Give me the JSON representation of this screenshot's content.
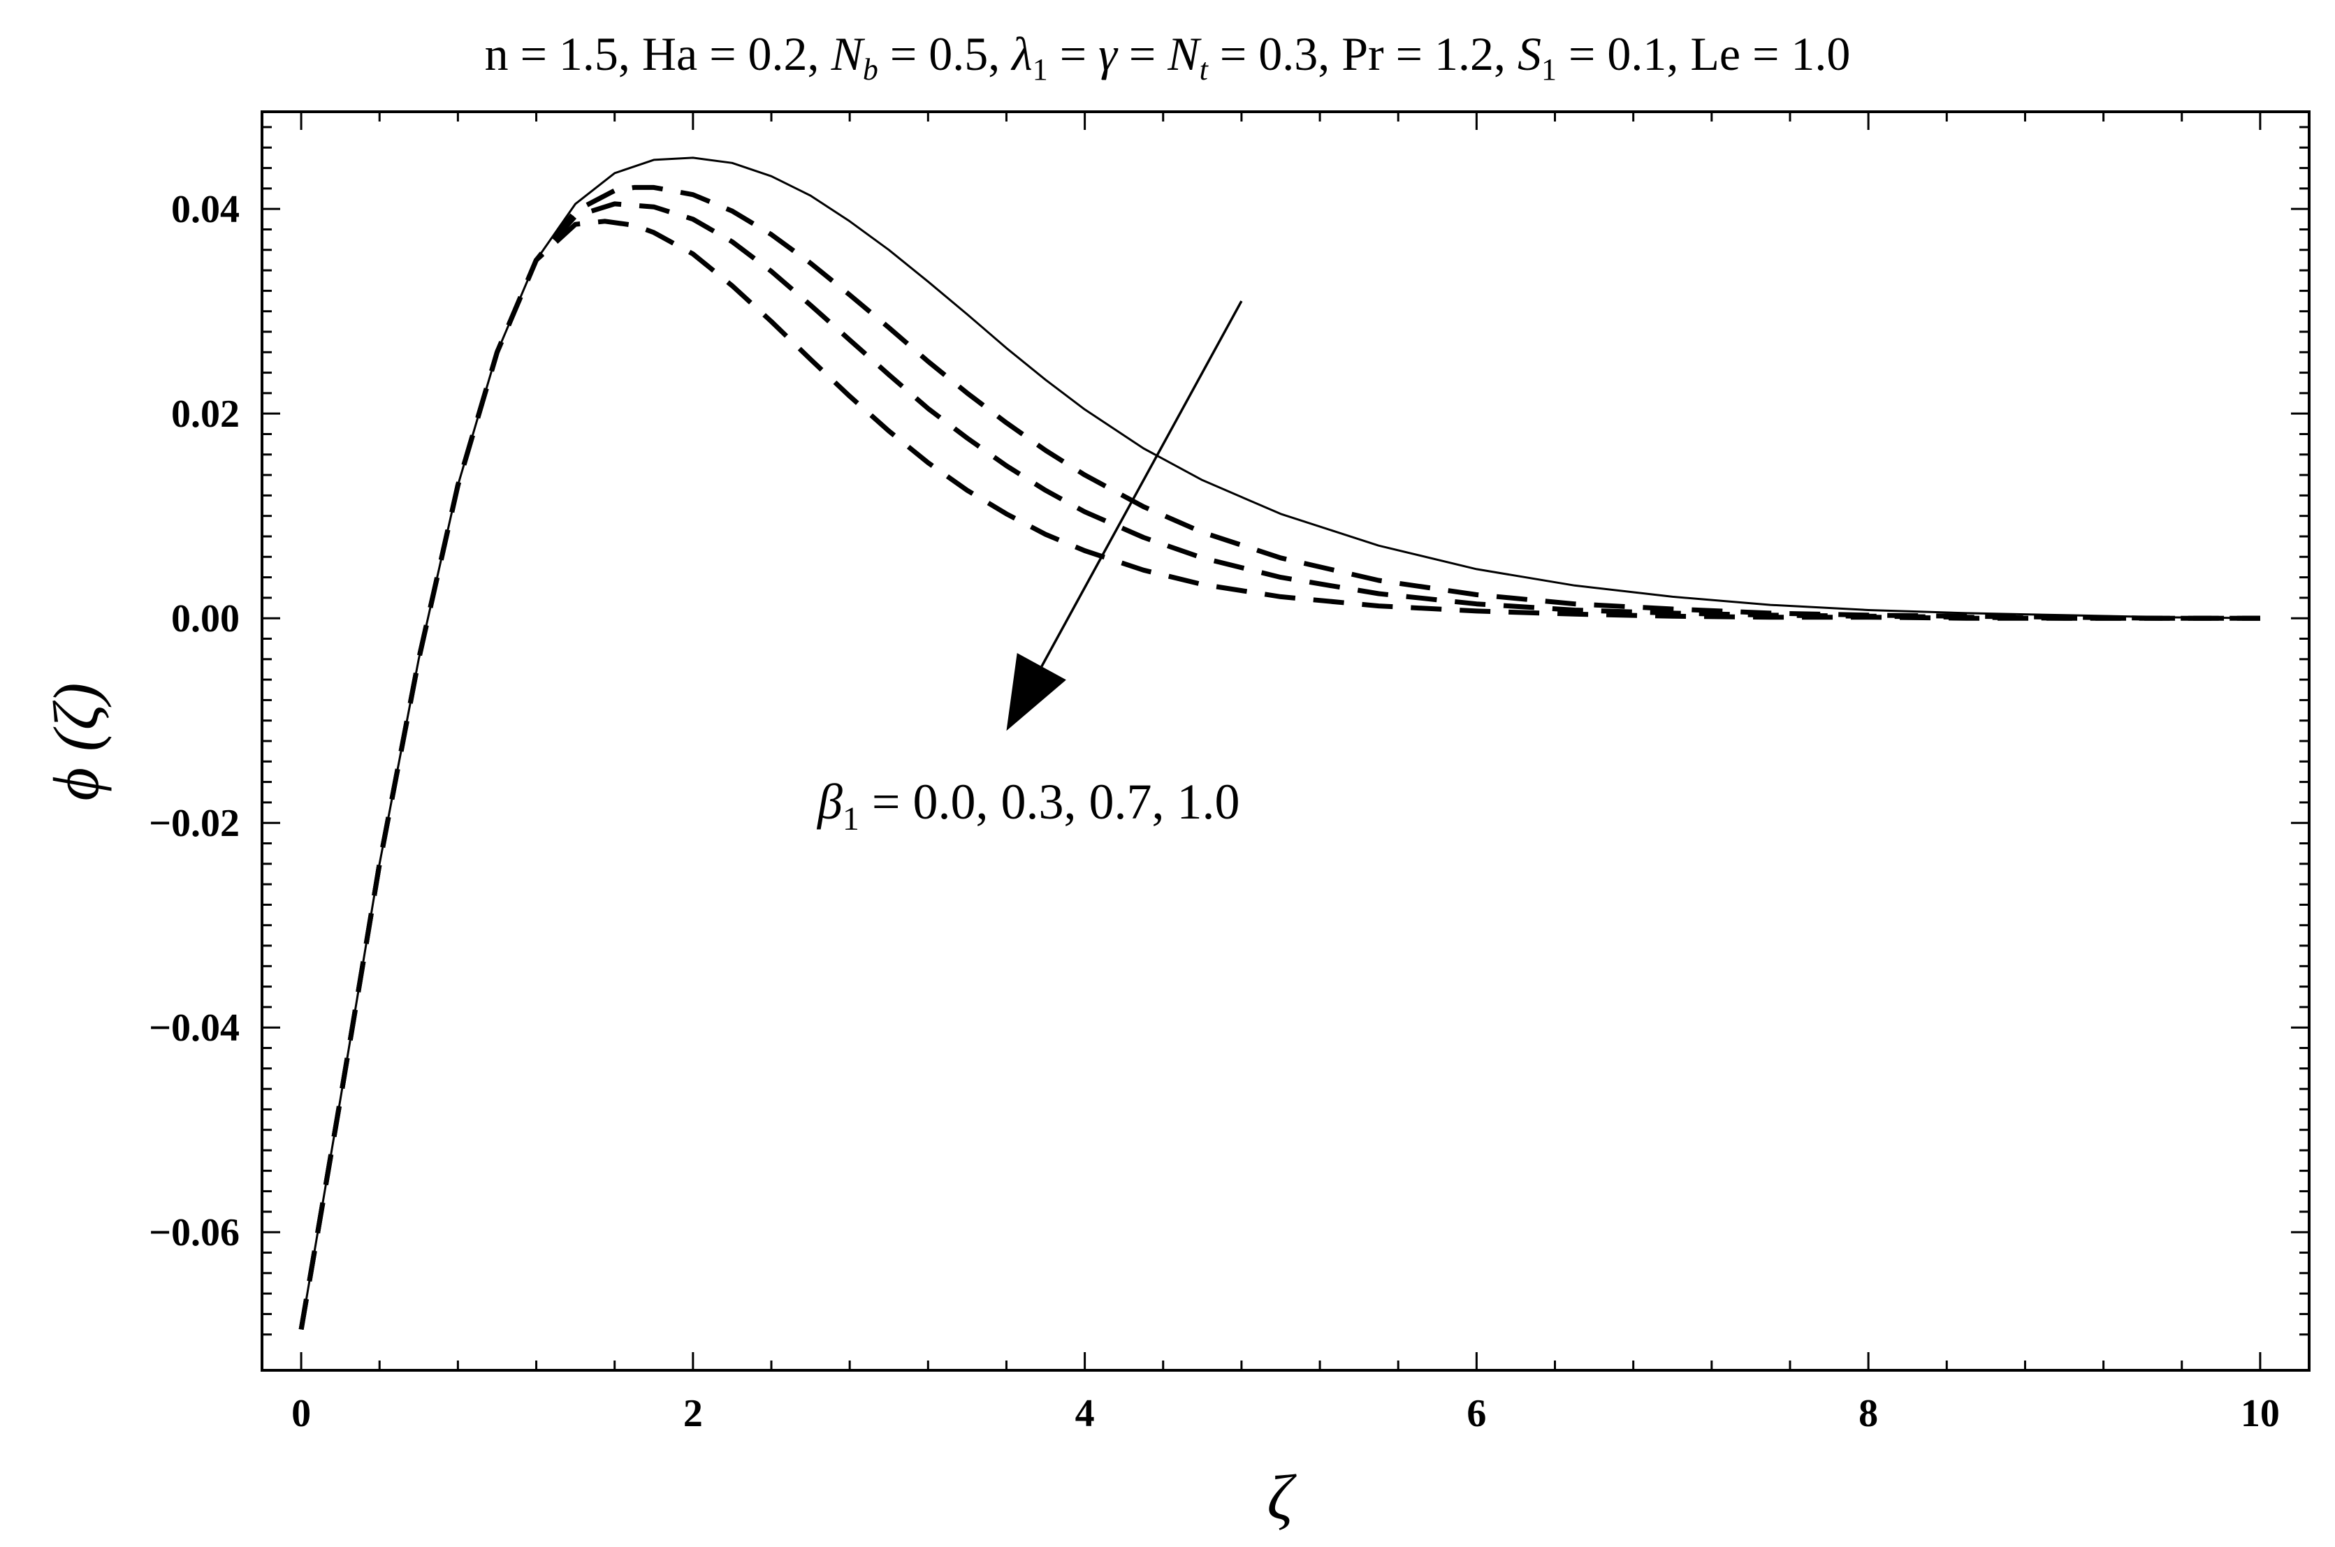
{
  "chart_data": {
    "type": "line",
    "title": "n = 1.5, Ha = 0.2, N_b = 0.5, λ_1 = γ = N_t = 0.3, Pr = 1.2, S_1 = 0.1, Le = 1.0",
    "title_parts": {
      "p1": "n = 1.5, Ha = 0.2, ",
      "p2": "N",
      "p2_sub": "b",
      "p3": " = 0.5, ",
      "p4": "λ",
      "p4_sub": "1",
      "p5": " = ",
      "p6": "γ",
      "p7": " = ",
      "p8": "N",
      "p8_sub": "t",
      "p9": " = 0.3, Pr = 1.2, ",
      "p10": "S",
      "p10_sub": "1",
      "p11": " = 0.1, Le = 1.0"
    },
    "xlabel": "ζ",
    "ylabel": "ϕ (ζ)",
    "xlim": [
      -0.2,
      10.25
    ],
    "ylim": [
      -0.0735,
      0.0495
    ],
    "xticks": [
      0,
      2,
      4,
      6,
      8,
      10
    ],
    "xtick_labels": [
      "0",
      "2",
      "4",
      "6",
      "8",
      "10"
    ],
    "yticks": [
      -0.06,
      -0.04,
      -0.02,
      0.0,
      0.02,
      0.04
    ],
    "ytick_labels": [
      "−0.06",
      "−0.04",
      "−0.02",
      "0.00",
      "0.02",
      "0.04"
    ],
    "grid": false,
    "line_color": "#000000",
    "annotation": {
      "symbol": "β",
      "sub": "1",
      "text": " = 0.0, 0.3, 0.7, 1.0",
      "arrow_from": [
        4.8,
        0.031
      ],
      "arrow_to": [
        3.6,
        -0.011
      ]
    },
    "series": [
      {
        "style": "solid",
        "x": [
          0,
          0.2,
          0.4,
          0.6,
          0.8,
          1.0,
          1.2,
          1.4,
          1.6,
          1.8,
          2.0,
          2.2,
          2.4,
          2.6,
          2.8,
          3.0,
          3.2,
          3.4,
          3.6,
          3.8,
          4.0,
          4.3,
          4.6,
          5.0,
          5.5,
          6.0,
          6.5,
          7.0,
          7.5,
          8.0,
          8.5,
          9.0,
          9.5,
          10.0
        ],
        "y": [
          -0.0695,
          -0.047,
          -0.024,
          -0.004,
          0.013,
          0.026,
          0.035,
          0.0405,
          0.0435,
          0.0448,
          0.045,
          0.0445,
          0.0432,
          0.0413,
          0.0388,
          0.036,
          0.0329,
          0.0297,
          0.0264,
          0.0233,
          0.0204,
          0.0166,
          0.0135,
          0.0102,
          0.0071,
          0.0048,
          0.0032,
          0.0021,
          0.0013,
          0.0008,
          0.0005,
          0.0003,
          0.0001,
          0.0
        ]
      },
      {
        "style": "dashed",
        "x": [
          0,
          0.2,
          0.4,
          0.6,
          0.8,
          1.0,
          1.2,
          1.4,
          1.6,
          1.7,
          1.8,
          2.0,
          2.2,
          2.4,
          2.6,
          2.8,
          3.0,
          3.2,
          3.4,
          3.6,
          3.8,
          4.0,
          4.3,
          4.6,
          5.0,
          5.5,
          6.0,
          6.5,
          7.0,
          7.5,
          8.0,
          8.5,
          9.0,
          9.5,
          10.0
        ],
        "y": [
          -0.0695,
          -0.047,
          -0.024,
          -0.004,
          0.013,
          0.026,
          0.035,
          0.0398,
          0.0418,
          0.0421,
          0.0421,
          0.0414,
          0.0398,
          0.0375,
          0.0347,
          0.0316,
          0.0284,
          0.0251,
          0.022,
          0.0191,
          0.0164,
          0.014,
          0.0109,
          0.0084,
          0.0059,
          0.0037,
          0.0023,
          0.0014,
          0.0009,
          0.0005,
          0.0003,
          0.0002,
          0.0001,
          0.0,
          0.0
        ]
      },
      {
        "style": "dashed",
        "x": [
          0,
          0.2,
          0.4,
          0.6,
          0.8,
          1.0,
          1.2,
          1.4,
          1.6,
          1.8,
          2.0,
          2.2,
          2.4,
          2.6,
          2.8,
          3.0,
          3.2,
          3.4,
          3.6,
          3.8,
          4.0,
          4.3,
          4.6,
          5.0,
          5.5,
          6.0,
          6.5,
          7.0,
          7.5,
          8.0,
          8.5,
          9.0,
          9.5,
          10.0
        ],
        "y": [
          -0.0695,
          -0.047,
          -0.024,
          -0.004,
          0.013,
          0.026,
          0.035,
          0.0393,
          0.0405,
          0.0402,
          0.039,
          0.0368,
          0.0339,
          0.0306,
          0.0272,
          0.0238,
          0.0205,
          0.0176,
          0.0149,
          0.0125,
          0.0104,
          0.0079,
          0.0059,
          0.004,
          0.0024,
          0.0014,
          0.0008,
          0.0005,
          0.0003,
          0.0002,
          0.0001,
          0.0,
          0.0,
          0.0
        ]
      },
      {
        "style": "dashed",
        "x": [
          0,
          0.2,
          0.4,
          0.6,
          0.8,
          1.0,
          1.2,
          1.4,
          1.55,
          1.7,
          1.8,
          2.0,
          2.2,
          2.4,
          2.6,
          2.8,
          3.0,
          3.2,
          3.4,
          3.6,
          3.8,
          4.0,
          4.3,
          4.6,
          5.0,
          5.5,
          6.0,
          6.5,
          7.0,
          7.5,
          8.0,
          8.5,
          9.0,
          9.5,
          10.0
        ],
        "y": [
          -0.0695,
          -0.047,
          -0.024,
          -0.004,
          0.013,
          0.026,
          0.035,
          0.0385,
          0.0388,
          0.0384,
          0.0377,
          0.0356,
          0.0325,
          0.029,
          0.0253,
          0.0217,
          0.0183,
          0.0152,
          0.0125,
          0.0102,
          0.0082,
          0.0066,
          0.0047,
          0.0033,
          0.0021,
          0.0012,
          0.0007,
          0.0004,
          0.0002,
          0.0001,
          0.0001,
          0.0,
          0.0,
          0.0,
          0.0
        ]
      }
    ]
  }
}
